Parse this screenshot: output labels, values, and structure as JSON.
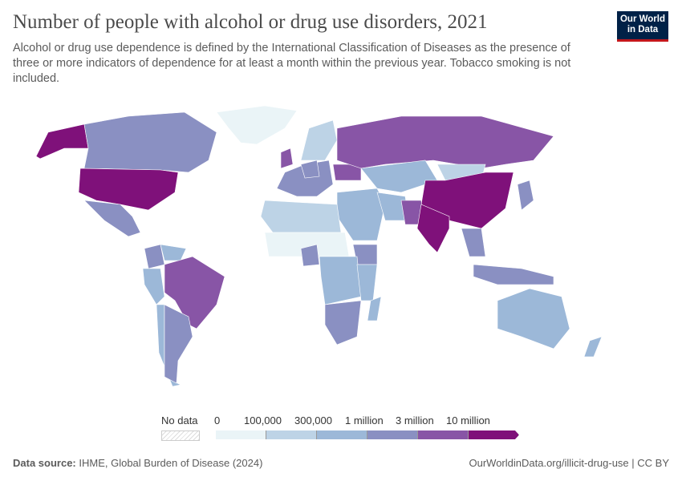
{
  "header": {
    "title": "Number of people with alcohol or drug use disorders, 2021",
    "subtitle": "Alcohol or drug use dependence is defined by the International Classification of Diseases as the presence of three or more indicators of dependence for at least a month within the previous year. Tobacco smoking is not included.",
    "logo": "Our World in Data"
  },
  "legend": {
    "no_data": "No data",
    "ticks": [
      "0",
      "100,000",
      "300,000",
      "1 million",
      "3 million",
      "10 million"
    ],
    "colors": [
      "#eaf4f7",
      "#bdd3e6",
      "#9cb8d8",
      "#8a90c2",
      "#8855a6",
      "#7f117a"
    ]
  },
  "map_data": {
    "USA": 5,
    "Canada": 3,
    "Alaska": 5,
    "Greenland": 0,
    "Mexico": 3,
    "Brazil": 4,
    "Argentina": 3,
    "Colombia": 3,
    "Peru": 2,
    "Venezuela": 2,
    "Chile": 2,
    "Russia": 4,
    "China": 5,
    "India": 5,
    "Pakistan": 4,
    "Europe_west": 3,
    "UK": 4,
    "Germany": 3,
    "Ukraine": 4,
    "Kazakhstan": 2,
    "Mongolia": 1,
    "Iran": 2,
    "Middle_east": 2,
    "North_africa": 1,
    "Sahel": 0,
    "Nigeria": 3,
    "Central_africa": 2,
    "Ethiopia": 3,
    "East_africa": 2,
    "South_africa": 3,
    "Madagascar": 2,
    "Australia": 2,
    "Indonesia": 3,
    "Japan": 3,
    "SE_Asia": 3,
    "Scandinavia": 1,
    "New_Zealand": 2
  },
  "footer": {
    "source_label": "Data source:",
    "source": "IHME, Global Burden of Disease (2024)",
    "link": "OurWorldinData.org/illicit-drug-use | CC BY"
  }
}
